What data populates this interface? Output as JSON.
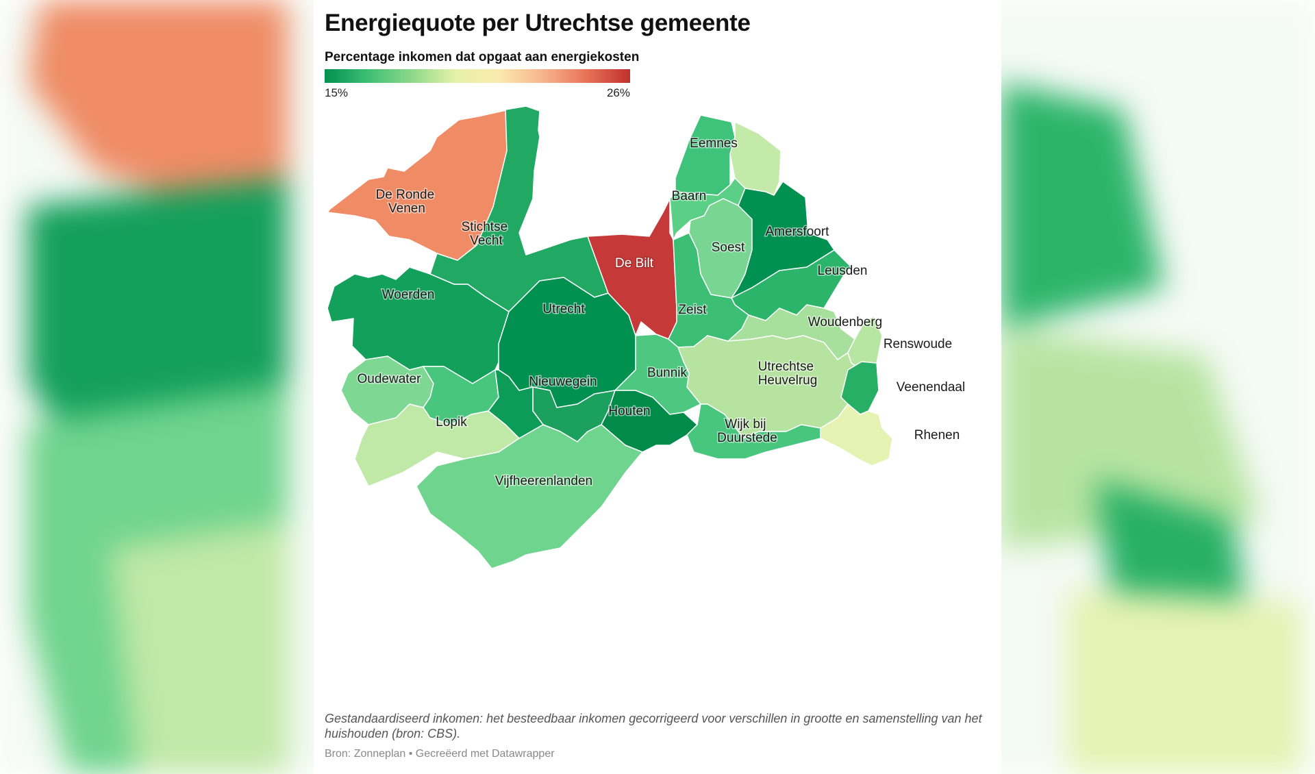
{
  "title": "Energiequote per Utrechtse gemeente",
  "legend": {
    "title": "Percentage inkomen dat opgaat aan energiekosten",
    "min_label": "15%",
    "max_label": "26%",
    "min": 15,
    "max": 26,
    "stops": [
      "#00904f",
      "#3fbf74",
      "#8ed88a",
      "#e6f2a8",
      "#fbe9ad",
      "#f7b48e",
      "#e87357",
      "#c0302f"
    ]
  },
  "map_data": {
    "type": "choropleth",
    "region": "Provincie Utrecht",
    "regions": [
      {
        "id": "de-ronde-venen",
        "name": "De Ronde Venen",
        "color": "#ef8c65"
      },
      {
        "id": "stichtse-vecht",
        "name": "Stichtse Vecht",
        "color": "#21a862"
      },
      {
        "id": "woerden",
        "name": "Woerden",
        "color": "#13a05b"
      },
      {
        "id": "utrecht",
        "name": "Utrecht",
        "color": "#00904f"
      },
      {
        "id": "de-bilt",
        "name": "De Bilt",
        "color": "#c53a38"
      },
      {
        "id": "eemnes",
        "name": "Eemnes",
        "color": "#3fc27a"
      },
      {
        "id": "baarn",
        "name": "Baarn",
        "color": "#5ccf86"
      },
      {
        "id": "soest",
        "name": "Soest",
        "color": "#79d692"
      },
      {
        "id": "amersfoort",
        "name": "Amersfoort",
        "color": "#00904f"
      },
      {
        "id": "leusden",
        "name": "Leusden",
        "color": "#2cb56a"
      },
      {
        "id": "zeist",
        "name": "Zeist",
        "color": "#3cbe75"
      },
      {
        "id": "woudenberg",
        "name": "Woudenberg",
        "color": "#a6e09c"
      },
      {
        "id": "renswoude",
        "name": "Renswoude",
        "color": "#b7e6a2"
      },
      {
        "id": "utrechtse-heuvelrug",
        "name": "Utrechtse Heuvelrug",
        "color": "#b6e4a0"
      },
      {
        "id": "veenendaal",
        "name": "Veenendaal",
        "color": "#27b065"
      },
      {
        "id": "rhenen",
        "name": "Rhenen",
        "color": "#e5f2b2"
      },
      {
        "id": "bunnik",
        "name": "Bunnik",
        "color": "#4ec880"
      },
      {
        "id": "nieuwegein",
        "name": "Nieuwegein",
        "color": "#1ba05e"
      },
      {
        "id": "houten",
        "name": "Houten",
        "color": "#008b4b"
      },
      {
        "id": "wijk-bij-duurstede",
        "name": "Wijk bij Duurstede",
        "color": "#48c67d"
      },
      {
        "id": "oudewater",
        "name": "Oudewater",
        "color": "#7ed894"
      },
      {
        "id": "montfoort",
        "name": "",
        "color": "#48c67d"
      },
      {
        "id": "ijsselstein",
        "name": "",
        "color": "#0d9c57"
      },
      {
        "id": "lopik",
        "name": "Lopik",
        "color": "#c0e8a6"
      },
      {
        "id": "vijfheerenlanden",
        "name": "Vijfheerenlanden",
        "color": "#6fd48d"
      },
      {
        "id": "lbl-text-helper",
        "name": "",
        "color": "#ffffff"
      }
    ]
  },
  "labels": {
    "de_ronde_venen": [
      "De Ronde",
      "Venen"
    ],
    "stichtse_vecht": [
      "Stichtse",
      "Vecht"
    ],
    "woerden": "Woerden",
    "utrecht": "Utrecht",
    "de_bilt": "De Bilt",
    "eemnes": "Eemnes",
    "baarn": "Baarn",
    "soest": "Soest",
    "amersfoort": "Amersfoort",
    "leusden": "Leusden",
    "zeist": "Zeist",
    "woudenberg": "Woudenberg",
    "renswoude": "Renswoude",
    "utrechtse_heuvelrug": [
      "Utrechtse",
      "Heuvelrug"
    ],
    "veenendaal": "Veenendaal",
    "rhenen": "Rhenen",
    "bunnik": "Bunnik",
    "nieuwegein": "Nieuwegein",
    "houten": "Houten",
    "wijk_bij_duurstede": [
      "Wijk bij",
      "Duurstede"
    ],
    "oudewater": "Oudewater",
    "lopik": "Lopik",
    "vijfheerenlanden": "Vijfheerenlanden"
  },
  "note": "Gestandaardiseerd inkomen: het besteedbaar inkomen gecorrigeerd voor verschillen in grootte en samenstelling van het huishouden (bron: CBS).",
  "source": "Bron: Zonneplan • Gecreëerd met Datawrapper"
}
